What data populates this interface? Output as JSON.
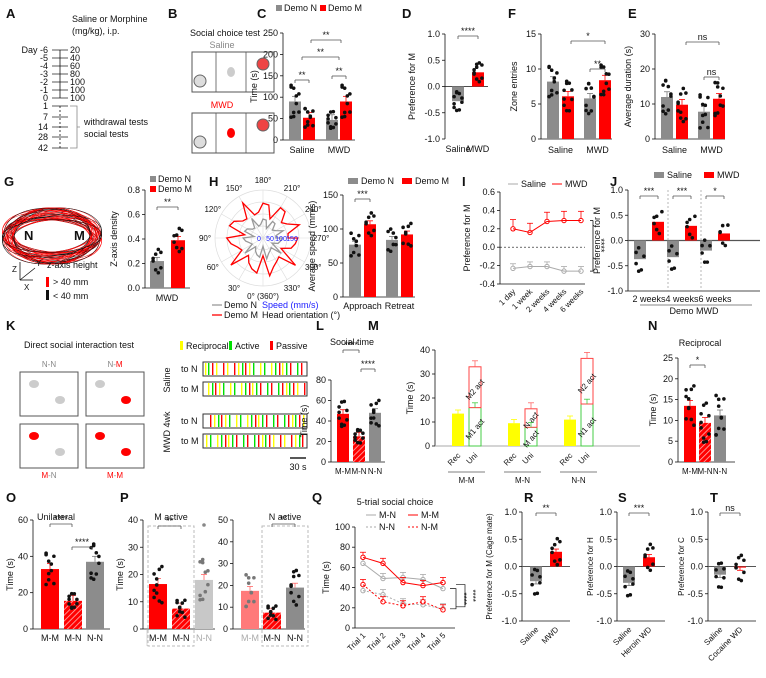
{
  "colors": {
    "red": "#ff0000",
    "gray": "#8c8c8c",
    "lightgray": "#c8c8c8",
    "pink": "#ff7a7a",
    "yellow": "#ffff00",
    "green": "#00e000",
    "blue": "#1a1aff",
    "black": "#111111"
  },
  "panel_labels": [
    "A",
    "B",
    "C",
    "D",
    "F",
    "E",
    "G",
    "H",
    "I",
    "J",
    "K",
    "L",
    "M",
    "N",
    "O",
    "P",
    "Q",
    "R",
    "S",
    "T"
  ],
  "A": {
    "title_line1": "Saline or Morphine",
    "title_line2": "(mg/kg), i.p.",
    "day_prefix": "Day",
    "days": [
      "-6",
      "-5",
      "-4",
      "-3",
      "-2",
      "-1",
      "0",
      "1",
      "7",
      "14",
      "28",
      "42"
    ],
    "doses": [
      "20",
      "40",
      "60",
      "80",
      "100",
      "100",
      "100"
    ],
    "test_line1": "withdrawal tests",
    "test_line2": "social tests"
  },
  "B": {
    "title": "Social choice test",
    "saline": "Saline",
    "mwd": "MWD"
  },
  "G": {
    "N": "N",
    "M": "M",
    "legend_title": "z-axis height",
    "above": "> 40 mm",
    "below": "< 40 mm",
    "axes": [
      "Z",
      "Y",
      "X"
    ]
  },
  "K": {
    "title": "Direct social interaction test",
    "pairs": [
      "N-N",
      "N-M",
      "M-N",
      "M-M"
    ],
    "legend": [
      "Reciprocal",
      "Active",
      "Passive"
    ],
    "groups": [
      "Saline",
      "MWD 4wk"
    ],
    "rows": [
      "to N",
      "to M"
    ],
    "scale": "30 s"
  },
  "chart_data": [
    {
      "id": "C",
      "type": "bar",
      "title": "",
      "ylabel": "Time (s)",
      "ylim": [
        0,
        250
      ],
      "yticks": [
        0,
        50,
        100,
        150,
        200,
        250
      ],
      "categories": [
        "Saline",
        "MWD"
      ],
      "legend": [
        "Demo N",
        "Demo M"
      ],
      "series": [
        {
          "name": "Demo N",
          "values": [
            90,
            47
          ]
        },
        {
          "name": "Demo M",
          "values": [
            52,
            90
          ]
        }
      ],
      "annotations": [
        "**",
        "**",
        "**",
        "**"
      ]
    },
    {
      "id": "D",
      "type": "bar",
      "ylabel": "Preference for M",
      "ylim": [
        -1,
        1
      ],
      "yticks": [
        -1.0,
        -0.5,
        0.0,
        0.5,
        1.0
      ],
      "categories": [
        "Saline",
        "MWD"
      ],
      "values": [
        -0.28,
        0.27
      ],
      "annotations": [
        "****"
      ]
    },
    {
      "id": "F",
      "type": "bar",
      "ylabel": "Zone entries",
      "ylim": [
        0,
        15
      ],
      "yticks": [
        0,
        5,
        10,
        15
      ],
      "categories": [
        "Saline",
        "MWD"
      ],
      "series": [
        {
          "name": "Demo N",
          "values": [
            8.2,
            5.8
          ]
        },
        {
          "name": "Demo M",
          "values": [
            6.1,
            8.4
          ]
        }
      ],
      "annotations": [
        "*",
        "**"
      ]
    },
    {
      "id": "E",
      "type": "bar",
      "ylabel": "Average duration (s)",
      "ylim": [
        0,
        30
      ],
      "yticks": [
        0,
        10,
        20,
        30
      ],
      "categories": [
        "Saline",
        "MWD"
      ],
      "series": [
        {
          "name": "Demo N",
          "values": [
            12,
            7.8
          ]
        },
        {
          "name": "Demo M",
          "values": [
            9.8,
            11.5
          ]
        }
      ],
      "annotations": [
        "ns",
        "ns"
      ]
    },
    {
      "id": "G",
      "type": "bar",
      "ylabel": "Z-axis density",
      "ylim": [
        0,
        0.8
      ],
      "yticks": [
        0.0,
        0.2,
        0.4,
        0.6,
        0.8
      ],
      "categories": [
        "MWD"
      ],
      "legend": [
        "Demo N",
        "Demo M"
      ],
      "series": [
        {
          "name": "Demo N",
          "values": [
            0.22
          ]
        },
        {
          "name": "Demo M",
          "values": [
            0.39
          ]
        }
      ],
      "annotations": [
        "**"
      ]
    },
    {
      "id": "H-polar",
      "type": "line",
      "title": "",
      "angles": [
        "0° (360°)",
        "30°",
        "60°",
        "90°",
        "120°",
        "150°",
        "180°",
        "210°",
        "240°",
        "270°",
        "300°",
        "330°"
      ],
      "radial_ticks": [
        "0",
        "50",
        "100",
        "150"
      ],
      "legend": [
        "Demo N",
        "Demo M"
      ],
      "radial_label": "Speed (mm/s)",
      "angle_label": "Head orientation (°)"
    },
    {
      "id": "H",
      "type": "bar",
      "ylabel": "Average speed (mm/s)",
      "ylim": [
        0,
        150
      ],
      "yticks": [
        0,
        50,
        100,
        150
      ],
      "categories": [
        "Approach",
        "Retreat"
      ],
      "legend": [
        "Demo N",
        "Demo M"
      ],
      "series": [
        {
          "name": "Demo N",
          "values": [
            77,
            84
          ]
        },
        {
          "name": "Demo M",
          "values": [
            107,
            92
          ]
        }
      ],
      "annotations": [
        "***"
      ]
    },
    {
      "id": "I",
      "type": "line",
      "ylabel": "Preference for M",
      "ylim": [
        -0.4,
        0.6
      ],
      "yticks": [
        -0.4,
        -0.2,
        0.0,
        0.2,
        0.4,
        0.6
      ],
      "x": [
        "1 day",
        "1 week",
        "2 weeks",
        "4 weeks",
        "6 weeks"
      ],
      "series": [
        {
          "name": "Saline",
          "values": [
            -0.23,
            -0.21,
            -0.21,
            -0.26,
            -0.26
          ]
        },
        {
          "name": "MWD",
          "values": [
            0.2,
            0.16,
            0.28,
            0.29,
            0.29
          ]
        }
      ],
      "annotations": [
        "****"
      ]
    },
    {
      "id": "J",
      "type": "bar",
      "ylabel": "Preference for M",
      "ylim": [
        -1,
        1
      ],
      "yticks": [
        -1.0,
        -0.5,
        0.0,
        0.5,
        1.0
      ],
      "categories": [
        "2 weeks",
        "4 weeks",
        "6 weeks"
      ],
      "xlabel": "Demo MWD",
      "legend": [
        "Saline",
        "MWD"
      ],
      "series": [
        {
          "name": "Saline",
          "values": [
            -0.37,
            -0.33,
            -0.2
          ]
        },
        {
          "name": "MWD",
          "values": [
            0.37,
            0.29,
            0.14
          ]
        }
      ],
      "annotations": [
        "***",
        "***",
        "*"
      ]
    },
    {
      "id": "L",
      "type": "bar",
      "title": "Social time",
      "ylabel": "Time (s)",
      "ylim": [
        0,
        80
      ],
      "yticks": [
        0,
        20,
        40,
        60,
        80
      ],
      "categories": [
        "M-M",
        "M-N",
        "N-N"
      ],
      "values": [
        47,
        25,
        48
      ],
      "annotations": [
        "****",
        "****"
      ]
    },
    {
      "id": "M",
      "type": "bar",
      "ylabel": "Time (s)",
      "ylim": [
        0,
        40
      ],
      "yticks": [
        0,
        10,
        20,
        30,
        40
      ],
      "groups": [
        "M-M",
        "M-N",
        "N-N"
      ],
      "categories": [
        "Rec",
        "Uni"
      ],
      "series": [
        {
          "name": "Rec",
          "values": [
            13.5,
            9.5,
            11
          ]
        },
        {
          "name": "Uni lower",
          "labels": [
            "M1 act",
            "M act",
            "N1 act"
          ],
          "values": [
            16,
            7.8,
            17.5
          ]
        },
        {
          "name": "Uni upper",
          "labels": [
            "M2 act",
            "N act",
            "N2 act"
          ],
          "values": [
            33,
            15.5,
            36.5
          ]
        }
      ]
    },
    {
      "id": "N",
      "type": "bar",
      "title": "Reciprocal",
      "ylabel": "Time (s)",
      "ylim": [
        0,
        25
      ],
      "yticks": [
        0,
        5,
        10,
        15,
        20,
        25
      ],
      "categories": [
        "M-M",
        "M-N",
        "N-N"
      ],
      "values": [
        13.5,
        9.4,
        11.2
      ],
      "annotations": [
        "*"
      ]
    },
    {
      "id": "O",
      "type": "bar",
      "title": "Unilateral",
      "ylabel": "Time (s)",
      "ylim": [
        0,
        60
      ],
      "yticks": [
        0,
        20,
        40,
        60
      ],
      "categories": [
        "M-M",
        "M-N",
        "N-N"
      ],
      "values": [
        33,
        15.5,
        37
      ],
      "annotations": [
        "****",
        "****"
      ]
    },
    {
      "id": "P1",
      "type": "bar",
      "title": "M active",
      "ylabel": "Time (s)",
      "ylim": [
        0,
        40
      ],
      "yticks": [
        0,
        10,
        20,
        30,
        40
      ],
      "categories": [
        "M-M",
        "M-N",
        "N-N"
      ],
      "values": [
        16.5,
        7.5,
        18
      ],
      "annotations": [
        "**"
      ]
    },
    {
      "id": "P2",
      "type": "bar",
      "title": "N active",
      "ylim": [
        0,
        50
      ],
      "yticks": [
        0,
        10,
        20,
        30,
        40,
        50
      ],
      "categories": [
        "M-M",
        "M-N",
        "N-N"
      ],
      "values": [
        17.5,
        7.5,
        19
      ],
      "annotations": [
        "**"
      ]
    },
    {
      "id": "Q",
      "type": "line",
      "title": "5-trial social choice",
      "ylabel": "Time (s)",
      "ylim": [
        0,
        100
      ],
      "yticks": [
        0,
        20,
        40,
        60,
        80,
        100
      ],
      "x": [
        "Trial 1",
        "Trial 2",
        "Trial 3",
        "Trial 4",
        "Trial 5"
      ],
      "series": [
        {
          "name": "M-N",
          "values": [
            64,
            49,
            50,
            48,
            39
          ]
        },
        {
          "name": "M-M",
          "values": [
            70,
            64,
            45,
            42,
            45
          ]
        },
        {
          "name": "N-N",
          "values": [
            37,
            33,
            24,
            23,
            19
          ]
        },
        {
          "name": "N-M",
          "values": [
            43,
            26,
            22,
            26,
            18
          ]
        }
      ],
      "annotations": [
        "****",
        "****"
      ]
    },
    {
      "id": "R",
      "type": "bar",
      "ylabel": "Preference for M (Cage mate)",
      "ylim": [
        -1,
        1
      ],
      "yticks": [
        -1.0,
        -0.5,
        0.0,
        0.5,
        1.0
      ],
      "categories": [
        "Saline",
        "MWD"
      ],
      "values": [
        -0.27,
        0.27
      ],
      "annotations": [
        "**"
      ]
    },
    {
      "id": "S",
      "type": "bar",
      "ylabel": "Preference for H",
      "ylim": [
        -1,
        1
      ],
      "yticks": [
        -1.0,
        -0.5,
        0.0,
        0.5,
        1.0
      ],
      "categories": [
        "Saline",
        "Heroin WD"
      ],
      "values": [
        -0.3,
        0.17
      ],
      "annotations": [
        "***"
      ]
    },
    {
      "id": "T",
      "type": "bar",
      "ylabel": "Preference for C",
      "ylim": [
        -1,
        1
      ],
      "yticks": [
        -1.0,
        -0.5,
        0.0,
        0.5,
        1.0
      ],
      "categories": [
        "Saline",
        "Cocaine WD"
      ],
      "values": [
        -0.15,
        -0.02
      ],
      "annotations": [
        "ns"
      ]
    }
  ]
}
